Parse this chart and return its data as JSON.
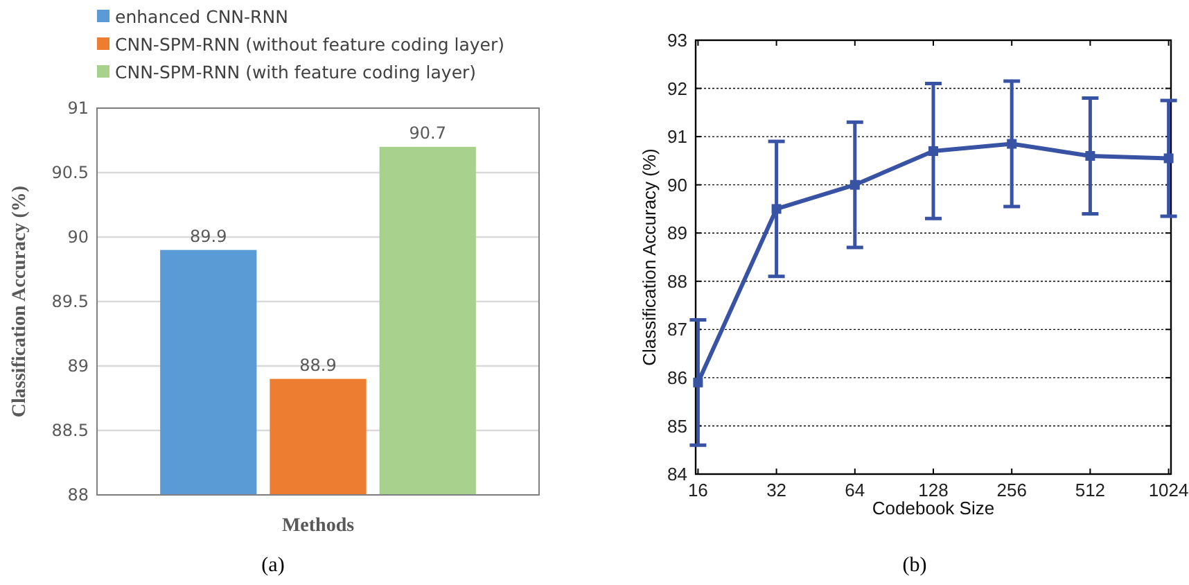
{
  "chart_data": [
    {
      "type": "bar",
      "categories": [
        null
      ],
      "xlabel": "Methods",
      "ylabel": "Classification Accuracy (%)",
      "ylim": [
        88,
        91
      ],
      "yticks": [
        88,
        88.5,
        89,
        89.5,
        90,
        90.5,
        91
      ],
      "grid": "y",
      "legend": "top left",
      "data_labels": true,
      "annotations": [
        "(a)"
      ],
      "series": [
        {
          "name": "enhanced CNN-RNN",
          "color": "#5b9bd5",
          "values": [
            89.9
          ]
        },
        {
          "name": "CNN-SPM-RNN (without feature coding layer)",
          "color": "#ed7d31",
          "values": [
            88.9
          ]
        },
        {
          "name": "CNN-SPM-RNN (with feature coding layer)",
          "color": "#a9d18e",
          "values": [
            90.7
          ]
        }
      ]
    },
    {
      "type": "line",
      "categories": [
        "16",
        "32",
        "64",
        "128",
        "256",
        "512",
        "1024"
      ],
      "xlabel": "Codebook Size",
      "ylabel": "Classification Accuracy (%)",
      "ylim": [
        84,
        93
      ],
      "yticks": [
        84,
        85,
        86,
        87,
        88,
        89,
        90,
        91,
        92,
        93
      ],
      "grid": "y",
      "marker": "square",
      "line_style": "solid",
      "annotations": [
        "(b)"
      ],
      "series": [
        {
          "color": "#3953a4",
          "values": [
            85.9,
            89.5,
            90.0,
            90.7,
            90.85,
            90.6,
            90.55
          ],
          "errors": [
            [
              84.6,
              87.2
            ],
            [
              88.1,
              90.9
            ],
            [
              88.7,
              91.3
            ],
            [
              89.3,
              92.1
            ],
            [
              89.55,
              92.15
            ],
            [
              89.4,
              91.8
            ],
            [
              89.35,
              91.75
            ]
          ]
        }
      ]
    }
  ]
}
